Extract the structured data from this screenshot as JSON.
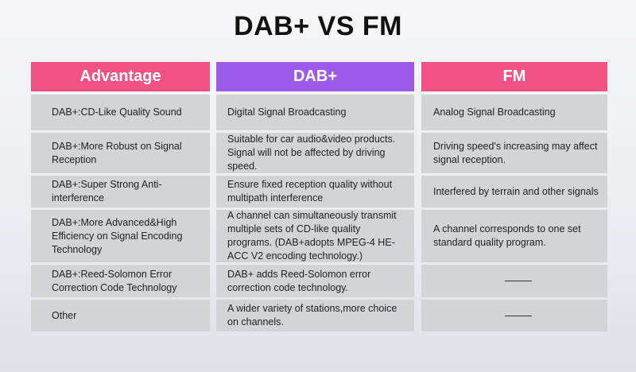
{
  "title": "DAB+ VS FM",
  "colors": {
    "advantage_header": "#f05383",
    "dab_header": "#9b5be8",
    "fm_header": "#f05383",
    "cell_background": "#d3d4d6"
  },
  "headers": {
    "advantage": "Advantage",
    "dab": "DAB+",
    "fm": "FM"
  },
  "rows": [
    {
      "advantage": "DAB+:CD-Like Quality Sound",
      "dab": "Digital Signal Broadcasting",
      "fm": "Analog Signal Broadcasting"
    },
    {
      "advantage": "DAB+:More Robust on Signal Reception",
      "dab": "Suitable for car audio&video products. Signal will not be affected by driving speed.",
      "fm": "Driving speed's increasing may affect signal reception."
    },
    {
      "advantage": "DAB+:Super Strong Anti-interference",
      "dab": "Ensure fixed reception quality without multipath interference",
      "fm": "Interfered by terrain and other signals"
    },
    {
      "advantage": "DAB+:More Advanced&High Efficiency on Signal Encoding Technology",
      "dab": "A channel can simultaneously transmit multiple sets of CD-like quality programs. (DAB+adopts MPEG-4 HE-ACC V2 encoding technology.)",
      "fm": "A channel corresponds to one set standard quality program."
    },
    {
      "advantage": "DAB+:Reed-Solomon Error Correction Code Technology",
      "dab": "DAB+ adds Reed-Solomon error correction code technology.",
      "fm": ""
    },
    {
      "advantage": "Other",
      "dab": "A wider variety of stations,more choice on channels.",
      "fm": ""
    }
  ]
}
